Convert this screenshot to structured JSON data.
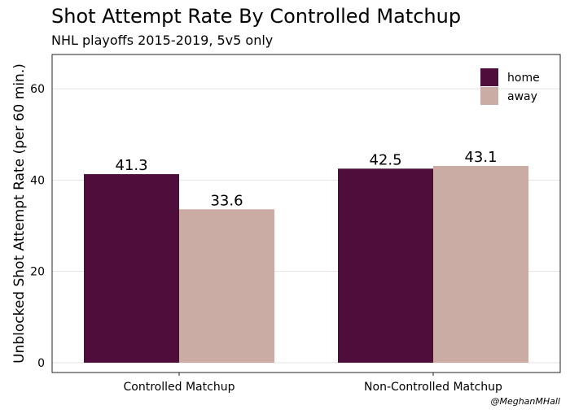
{
  "title": "Shot Attempt Rate By Controlled Matchup",
  "subtitle": "NHL playoffs 2015-2019, 5v5 only",
  "credit": "@MeghanMHall",
  "chart_data": {
    "type": "bar",
    "categories": [
      "Controlled Matchup",
      "Non-Controlled Matchup"
    ],
    "series": [
      {
        "name": "home",
        "values": [
          41.3,
          42.5
        ],
        "labels": [
          "41.3",
          "42.5"
        ],
        "color": "#4e0d3a"
      },
      {
        "name": "away",
        "values": [
          33.6,
          43.1
        ],
        "labels": [
          "33.6",
          "43.1"
        ],
        "color": "#cbaca4"
      }
    ],
    "xlabel": "",
    "ylabel": "Unblocked Shot Attempt Rate (per 60 min.)",
    "ylim": [
      -2.15,
      67.5
    ],
    "yticks": [
      0,
      20,
      40,
      60
    ],
    "grid": true,
    "legend_position": "top-right"
  }
}
